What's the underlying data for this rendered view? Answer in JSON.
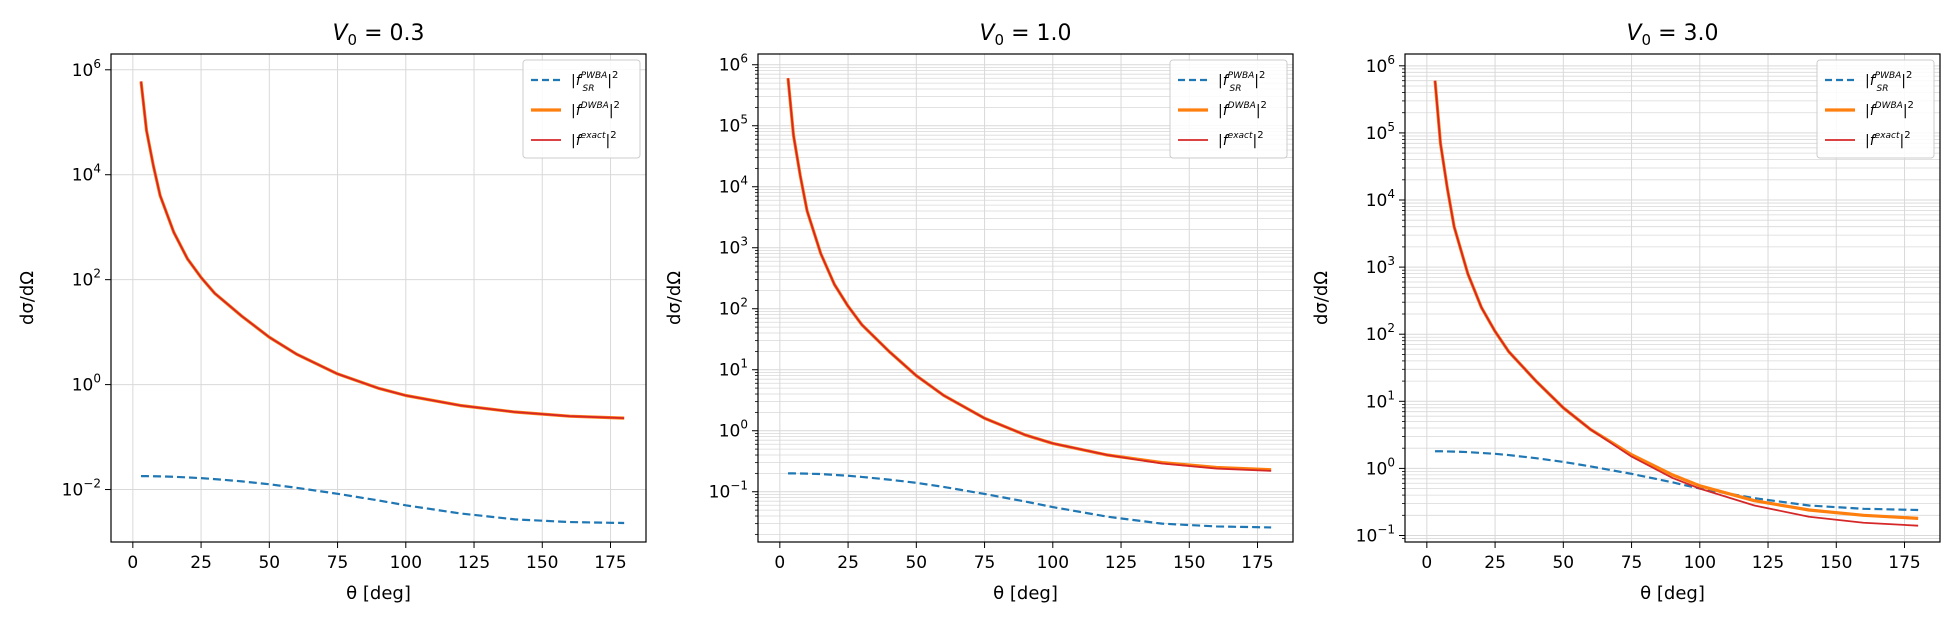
{
  "colors": {
    "pwba": "#1f77b4",
    "dwba": "#ff7f0e",
    "exact": "#d62728",
    "grid": "#d9d9d9"
  },
  "chart_data": [
    {
      "type": "line",
      "title": "V_0 = 0.3",
      "title_main": "V",
      "title_sub": "0",
      "title_rest": " = 0.3",
      "xlabel": "θ  [deg]",
      "ylabel": "dσ/dΩ",
      "yscale": "log",
      "xlim": [
        -8,
        188
      ],
      "ylim": [
        0.001,
        2000000
      ],
      "xticks": [
        0,
        25,
        50,
        75,
        100,
        125,
        150,
        175
      ],
      "xtick_labels": [
        "0",
        "25",
        "50",
        "75",
        "100",
        "125",
        "150",
        "175"
      ],
      "yticks": [
        0.01,
        1,
        100,
        10000,
        1000000
      ],
      "ytick_base": "10",
      "ytick_exponents": [
        "−2",
        "0",
        "2",
        "4",
        "6"
      ],
      "grid": true,
      "minor_grid": false,
      "legend_position": "top-right",
      "x": [
        3,
        5,
        7.5,
        10,
        15,
        20,
        25,
        30,
        40,
        50,
        60,
        75,
        90,
        100,
        120,
        140,
        160,
        180
      ],
      "series": [
        {
          "name": "|f_SR^PWBA|^2",
          "key": "pwba",
          "style": "dashed",
          "values": [
            0.018,
            0.018,
            0.0179,
            0.0178,
            0.0175,
            0.017,
            0.0165,
            0.0158,
            0.0143,
            0.0126,
            0.0108,
            0.0083,
            0.0062,
            0.005,
            0.0035,
            0.0027,
            0.0024,
            0.0023
          ]
        },
        {
          "name": "|f^DWBA|^2",
          "key": "dwba",
          "style": "solid-thick",
          "values": [
            600000,
            70000,
            15000,
            4000,
            800,
            250,
            110,
            55,
            20,
            8,
            3.8,
            1.6,
            0.85,
            0.62,
            0.4,
            0.3,
            0.25,
            0.23
          ]
        },
        {
          "name": "|f^exact|^2",
          "key": "exact",
          "style": "solid-thin",
          "values": [
            600000,
            70000,
            15000,
            4000,
            800,
            250,
            110,
            55,
            20,
            8,
            3.8,
            1.6,
            0.85,
            0.62,
            0.4,
            0.3,
            0.25,
            0.23
          ]
        }
      ],
      "legend": [
        {
          "key": "pwba",
          "base": "|f",
          "sup": "PWBA",
          "sub": "SR",
          "tail": "|",
          "power": "2"
        },
        {
          "key": "dwba",
          "base": "|f",
          "sup": "DWBA",
          "sub": "",
          "tail": "|",
          "power": "2"
        },
        {
          "key": "exact",
          "base": "|f",
          "sup": "exact",
          "sub": "",
          "tail": "|",
          "power": "2"
        }
      ]
    },
    {
      "type": "line",
      "title": "V_0 = 1.0",
      "title_main": "V",
      "title_sub": "0",
      "title_rest": " = 1.0",
      "xlabel": "θ  [deg]",
      "ylabel": "dσ/dΩ",
      "yscale": "log",
      "xlim": [
        -8,
        188
      ],
      "ylim": [
        0.015,
        1500000
      ],
      "xticks": [
        0,
        25,
        50,
        75,
        100,
        125,
        150,
        175
      ],
      "xtick_labels": [
        "0",
        "25",
        "50",
        "75",
        "100",
        "125",
        "150",
        "175"
      ],
      "yticks": [
        0.1,
        1,
        10,
        100,
        1000,
        10000,
        100000,
        1000000
      ],
      "ytick_base": "10",
      "ytick_exponents": [
        "−1",
        "0",
        "1",
        "2",
        "3",
        "4",
        "5",
        "6"
      ],
      "grid": true,
      "minor_grid": true,
      "legend_position": "top-right",
      "x": [
        3,
        5,
        7.5,
        10,
        15,
        20,
        25,
        30,
        40,
        50,
        60,
        75,
        90,
        100,
        120,
        140,
        160,
        180
      ],
      "series": [
        {
          "name": "|f_SR^PWBA|^2",
          "key": "pwba",
          "style": "dashed",
          "values": [
            0.2,
            0.2,
            0.199,
            0.198,
            0.195,
            0.189,
            0.183,
            0.175,
            0.158,
            0.14,
            0.12,
            0.092,
            0.069,
            0.056,
            0.039,
            0.03,
            0.027,
            0.026
          ]
        },
        {
          "name": "|f^DWBA|^2",
          "key": "dwba",
          "style": "solid-thick",
          "values": [
            600000,
            70000,
            15000,
            4000,
            800,
            250,
            110,
            55,
            20,
            8,
            3.8,
            1.6,
            0.85,
            0.62,
            0.4,
            0.3,
            0.25,
            0.23
          ]
        },
        {
          "name": "|f^exact|^2",
          "key": "exact",
          "style": "solid-thin",
          "values": [
            600000,
            70000,
            15000,
            4000,
            800,
            250,
            110,
            55,
            20,
            8,
            3.8,
            1.6,
            0.85,
            0.62,
            0.4,
            0.29,
            0.24,
            0.22
          ]
        }
      ],
      "legend": [
        {
          "key": "pwba",
          "base": "|f",
          "sup": "PWBA",
          "sub": "SR",
          "tail": "|",
          "power": "2"
        },
        {
          "key": "dwba",
          "base": "|f",
          "sup": "DWBA",
          "sub": "",
          "tail": "|",
          "power": "2"
        },
        {
          "key": "exact",
          "base": "|f",
          "sup": "exact",
          "sub": "",
          "tail": "|",
          "power": "2"
        }
      ]
    },
    {
      "type": "line",
      "title": "V_0 = 3.0",
      "title_main": "V",
      "title_sub": "0",
      "title_rest": " = 3.0",
      "xlabel": "θ  [deg]",
      "ylabel": "dσ/dΩ",
      "yscale": "log",
      "xlim": [
        -8,
        188
      ],
      "ylim": [
        0.08,
        1500000
      ],
      "xticks": [
        0,
        25,
        50,
        75,
        100,
        125,
        150,
        175
      ],
      "xtick_labels": [
        "0",
        "25",
        "50",
        "75",
        "100",
        "125",
        "150",
        "175"
      ],
      "yticks": [
        0.1,
        1,
        10,
        100,
        1000,
        10000,
        100000,
        1000000
      ],
      "ytick_base": "10",
      "ytick_exponents": [
        "−1",
        "0",
        "1",
        "2",
        "3",
        "4",
        "5",
        "6"
      ],
      "grid": true,
      "minor_grid": true,
      "legend_position": "top-right",
      "x": [
        3,
        5,
        7.5,
        10,
        15,
        20,
        25,
        30,
        40,
        50,
        60,
        75,
        90,
        100,
        120,
        140,
        160,
        180
      ],
      "series": [
        {
          "name": "|f_SR^PWBA|^2",
          "key": "pwba",
          "style": "dashed",
          "values": [
            1.8,
            1.8,
            1.79,
            1.78,
            1.75,
            1.7,
            1.65,
            1.58,
            1.42,
            1.25,
            1.07,
            0.83,
            0.62,
            0.5,
            0.36,
            0.28,
            0.25,
            0.24
          ]
        },
        {
          "name": "|f^DWBA|^2",
          "key": "dwba",
          "style": "solid-thick",
          "values": [
            600000,
            70000,
            15000,
            4000,
            800,
            250,
            110,
            55,
            20,
            8,
            3.8,
            1.6,
            0.8,
            0.55,
            0.33,
            0.24,
            0.2,
            0.18
          ]
        },
        {
          "name": "|f^exact|^2",
          "key": "exact",
          "style": "solid-thin",
          "values": [
            600000,
            70000,
            15000,
            4000,
            800,
            250,
            110,
            55,
            20,
            8,
            3.8,
            1.5,
            0.72,
            0.5,
            0.28,
            0.19,
            0.155,
            0.14
          ]
        }
      ],
      "legend": [
        {
          "key": "pwba",
          "base": "|f",
          "sup": "PWBA",
          "sub": "SR",
          "tail": "|",
          "power": "2"
        },
        {
          "key": "dwba",
          "base": "|f",
          "sup": "DWBA",
          "sub": "",
          "tail": "|",
          "power": "2"
        },
        {
          "key": "exact",
          "base": "|f",
          "sup": "exact",
          "sub": "",
          "tail": "|",
          "power": "2"
        }
      ]
    }
  ]
}
